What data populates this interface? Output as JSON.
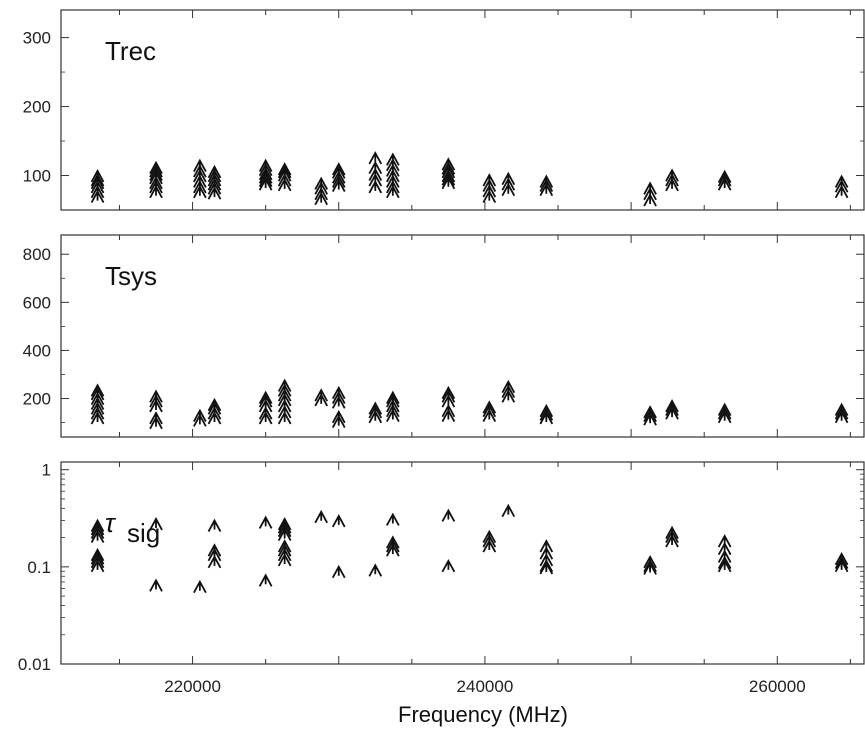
{
  "chart_data": {
    "type": "scatter",
    "xlabel": "Frequency (MHz)",
    "xlim": [
      211000,
      266000
    ],
    "x_ticks": [
      "220000",
      "240000",
      "260000"
    ],
    "panels": [
      {
        "label": "Trec",
        "scale": "linear",
        "ylim": [
          50,
          340
        ],
        "y_ticks": [
          "100",
          "200",
          "300"
        ],
        "points": [
          [
            213500,
            [
              68,
              75,
              82,
              88,
              92,
              98
            ]
          ],
          [
            217500,
            [
              75,
              82,
              88,
              95,
              100,
              105,
              110
            ]
          ],
          [
            220500,
            [
              75,
              82,
              90,
              98,
              105,
              113
            ]
          ],
          [
            221500,
            [
              73,
              80,
              86,
              92,
              98,
              104
            ]
          ],
          [
            225000,
            [
              86,
              91,
              96,
              101,
              107,
              113
            ]
          ],
          [
            226300,
            [
              85,
              92,
              99,
              104,
              108
            ]
          ],
          [
            228800,
            [
              65,
              72,
              80,
              87
            ]
          ],
          [
            230000,
            [
              84,
              90,
              96,
              103,
              108
            ]
          ],
          [
            232500,
            [
              82,
              92,
              100,
              110,
              124
            ]
          ],
          [
            233700,
            [
              75,
              82,
              90,
              98,
              106,
              114,
              122
            ]
          ],
          [
            237500,
            [
              88,
              93,
              98,
              104,
              109,
              115
            ]
          ],
          [
            240300,
            [
              68,
              76,
              84,
              92
            ]
          ],
          [
            241600,
            [
              78,
              86,
              94
            ]
          ],
          [
            244200,
            [
              78,
              84,
              90
            ]
          ],
          [
            251300,
            [
              63,
              72,
              80
            ]
          ],
          [
            252800,
            [
              85,
              92,
              99
            ]
          ],
          [
            256400,
            [
              86,
              92,
              97
            ]
          ],
          [
            264400,
            [
              75,
              83,
              90
            ]
          ]
        ]
      },
      {
        "label": "Tsys",
        "scale": "linear",
        "ylim": [
          40,
          880
        ],
        "y_ticks": [
          "200",
          "400",
          "600",
          "800"
        ],
        "points": [
          [
            213500,
            [
              115,
              135,
              155,
              175,
              195,
              215,
              230
            ]
          ],
          [
            217500,
            [
              95,
              115,
              165,
              185,
              205
            ]
          ],
          [
            220500,
            [
              105,
              125
            ]
          ],
          [
            221500,
            [
              115,
              135,
              155,
              170
            ]
          ],
          [
            225000,
            [
              115,
              135,
              165,
              185,
              200
            ]
          ],
          [
            226300,
            [
              115,
              140,
              165,
              190,
              210,
              230,
              250
            ]
          ],
          [
            228800,
            [
              190,
              210
            ]
          ],
          [
            230000,
            [
              100,
              120,
              180,
              200,
              220
            ]
          ],
          [
            232500,
            [
              120,
              140,
              155
            ]
          ],
          [
            233700,
            [
              125,
              145,
              165,
              185,
              200
            ]
          ],
          [
            237500,
            [
              125,
              145,
              185,
              205,
              220
            ]
          ],
          [
            240300,
            [
              125,
              145,
              160
            ]
          ],
          [
            241600,
            [
              205,
              225,
              245
            ]
          ],
          [
            244200,
            [
              115,
              130,
              145
            ]
          ],
          [
            251300,
            [
              110,
              125,
              140
            ]
          ],
          [
            252800,
            [
              135,
              150,
              165
            ]
          ],
          [
            256400,
            [
              120,
              135,
              150
            ]
          ],
          [
            264400,
            [
              120,
              135,
              150
            ]
          ]
        ]
      },
      {
        "label_main": "τ",
        "label_sub": "sig",
        "scale": "log",
        "ylim": [
          0.01,
          1.2
        ],
        "y_ticks": [
          "0.01",
          "0.1",
          "1"
        ],
        "y_tick_values": [
          0.01,
          0.1,
          1
        ],
        "points": [
          [
            213500,
            [
              0.1,
              0.11,
              0.12,
              0.13,
              0.2,
              0.22,
              0.24,
              0.26
            ]
          ],
          [
            217500,
            [
              0.063,
              0.27
            ]
          ],
          [
            220500,
            [
              0.061
            ]
          ],
          [
            221500,
            [
              0.11,
              0.13,
              0.145,
              0.26
            ]
          ],
          [
            225000,
            [
              0.071,
              0.28
            ]
          ],
          [
            226300,
            [
              0.115,
              0.13,
              0.145,
              0.16,
              0.21,
              0.23,
              0.25,
              0.27
            ]
          ],
          [
            228800,
            [
              0.32
            ]
          ],
          [
            230000,
            [
              0.087,
              0.29
            ]
          ],
          [
            232500,
            [
              0.09
            ]
          ],
          [
            233700,
            [
              0.145,
              0.16,
              0.175,
              0.3
            ]
          ],
          [
            237500,
            [
              0.1,
              0.33
            ]
          ],
          [
            240300,
            [
              0.16,
              0.18,
              0.2
            ]
          ],
          [
            241600,
            [
              0.37
            ]
          ],
          [
            244200,
            [
              0.095,
              0.1,
              0.115,
              0.135,
              0.16
            ]
          ],
          [
            251300,
            [
              0.094,
              0.1,
              0.11
            ]
          ],
          [
            252800,
            [
              0.18,
              0.2,
              0.22
            ]
          ],
          [
            256400,
            [
              0.1,
              0.108,
              0.125,
              0.15,
              0.18
            ]
          ],
          [
            264400,
            [
              0.1,
              0.108,
              0.118
            ]
          ]
        ]
      }
    ]
  }
}
